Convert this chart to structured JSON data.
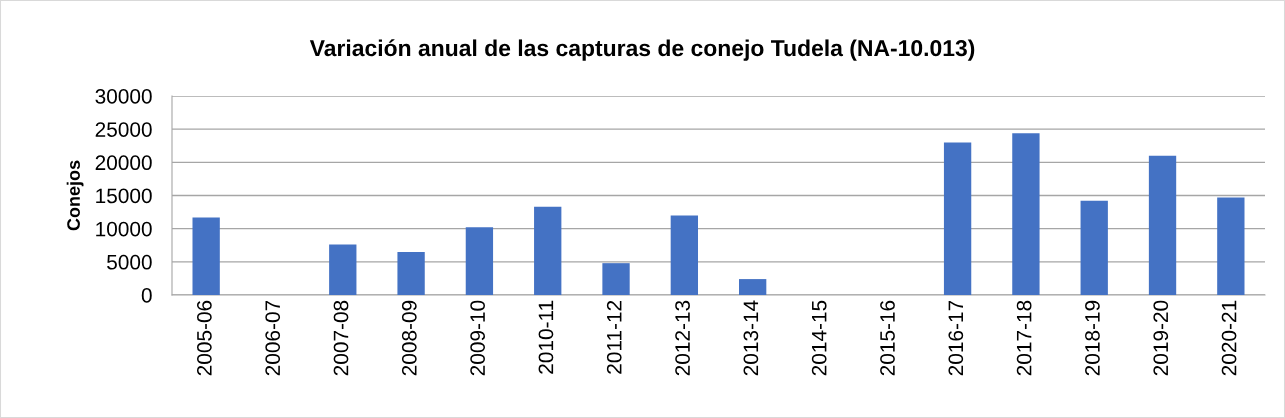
{
  "chart_data": {
    "type": "bar",
    "title": "Variación anual de las capturas de conejo Tudela (NA-10.013)",
    "ylabel": "Conejos",
    "categories": [
      "2005-06",
      "2006-07",
      "2007-08",
      "2008-09",
      "2009-10",
      "2010-11",
      "2011-12",
      "2012-13",
      "2013-14",
      "2014-15",
      "2015-16",
      "2016-17",
      "2017-18",
      "2018-19",
      "2019-20",
      "2020-21"
    ],
    "values": [
      11700,
      null,
      7600,
      6500,
      10200,
      13300,
      4800,
      12000,
      2400,
      null,
      null,
      23000,
      24400,
      14200,
      21000,
      14700
    ],
    "color": "#4472c4",
    "ylim": [
      0,
      30000
    ],
    "yticks": [
      0,
      5000,
      10000,
      15000,
      20000,
      25000,
      30000
    ],
    "grid": "y",
    "legend": false
  }
}
